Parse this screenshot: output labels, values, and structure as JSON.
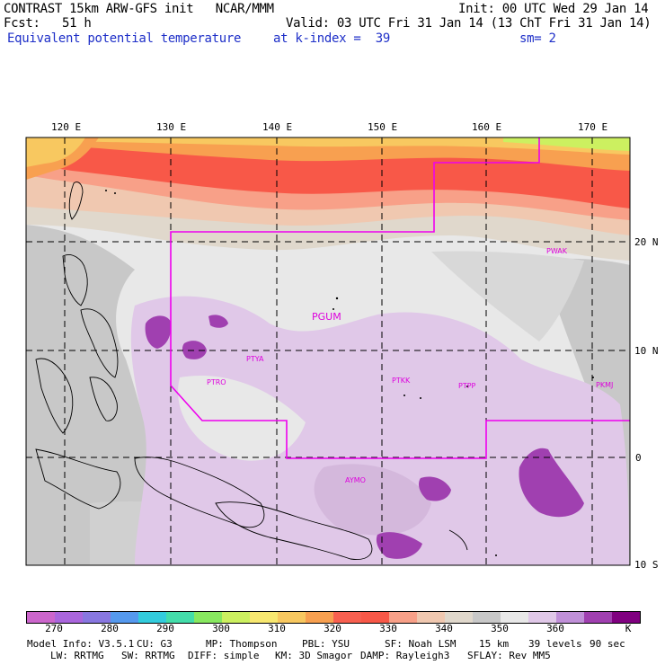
{
  "header": {
    "model_line": "CONTRAST 15km ARW-GFS init   NCAR/MMM",
    "init": "Init: 00 UTC Wed 29 Jan 14",
    "fcst": "Fcst:   51 h",
    "valid": "Valid: 03 UTC Fri 31 Jan 14 (13 ChT Fri 31 Jan 14)",
    "field": "Equivalent potential temperature",
    "level": "at k-index =  39",
    "smooth": "sm= 2"
  },
  "axes": {
    "lon_labels": [
      "120 E",
      "130 E",
      "140 E",
      "150 E",
      "160 E",
      "170 E"
    ],
    "lat_labels": [
      "20 N",
      "10 N",
      "0",
      "10 S"
    ]
  },
  "stations": [
    "PGUM",
    "PTYA",
    "PTRO",
    "PTKK",
    "PTPP",
    "PKMJ",
    "PWAK",
    "AYMO"
  ],
  "colorbar": {
    "colors": [
      "#cc66cc",
      "#aa66dd",
      "#8877e0",
      "#5599ee",
      "#33ccdd",
      "#44ddaa",
      "#88e860",
      "#ccf060",
      "#f8e870",
      "#f8c860",
      "#f8a050",
      "#f86050",
      "#f85848",
      "#f8a088",
      "#f0c8b0",
      "#e0d8cc",
      "#c8c8c8",
      "#e8e8e8",
      "#e0c8e8",
      "#c090d8",
      "#a040b0",
      "#800080"
    ],
    "labels": [
      "270",
      "280",
      "290",
      "300",
      "310",
      "320",
      "330",
      "340",
      "350",
      "360"
    ],
    "unit": "K"
  },
  "footer": {
    "line1": [
      "Model Info: V3.5.1",
      "CU: G3",
      "MP: Thompson",
      "PBL: YSU",
      "SF: Noah LSM",
      "15 km",
      "39 levels",
      "90 sec"
    ],
    "line2": [
      "LW: RRTMG",
      "SW: RRTMG",
      "DIFF: simple",
      "KM: 3D Smagor",
      "DAMP: Rayleigh3",
      "SFLAY: Rev MM5"
    ]
  }
}
